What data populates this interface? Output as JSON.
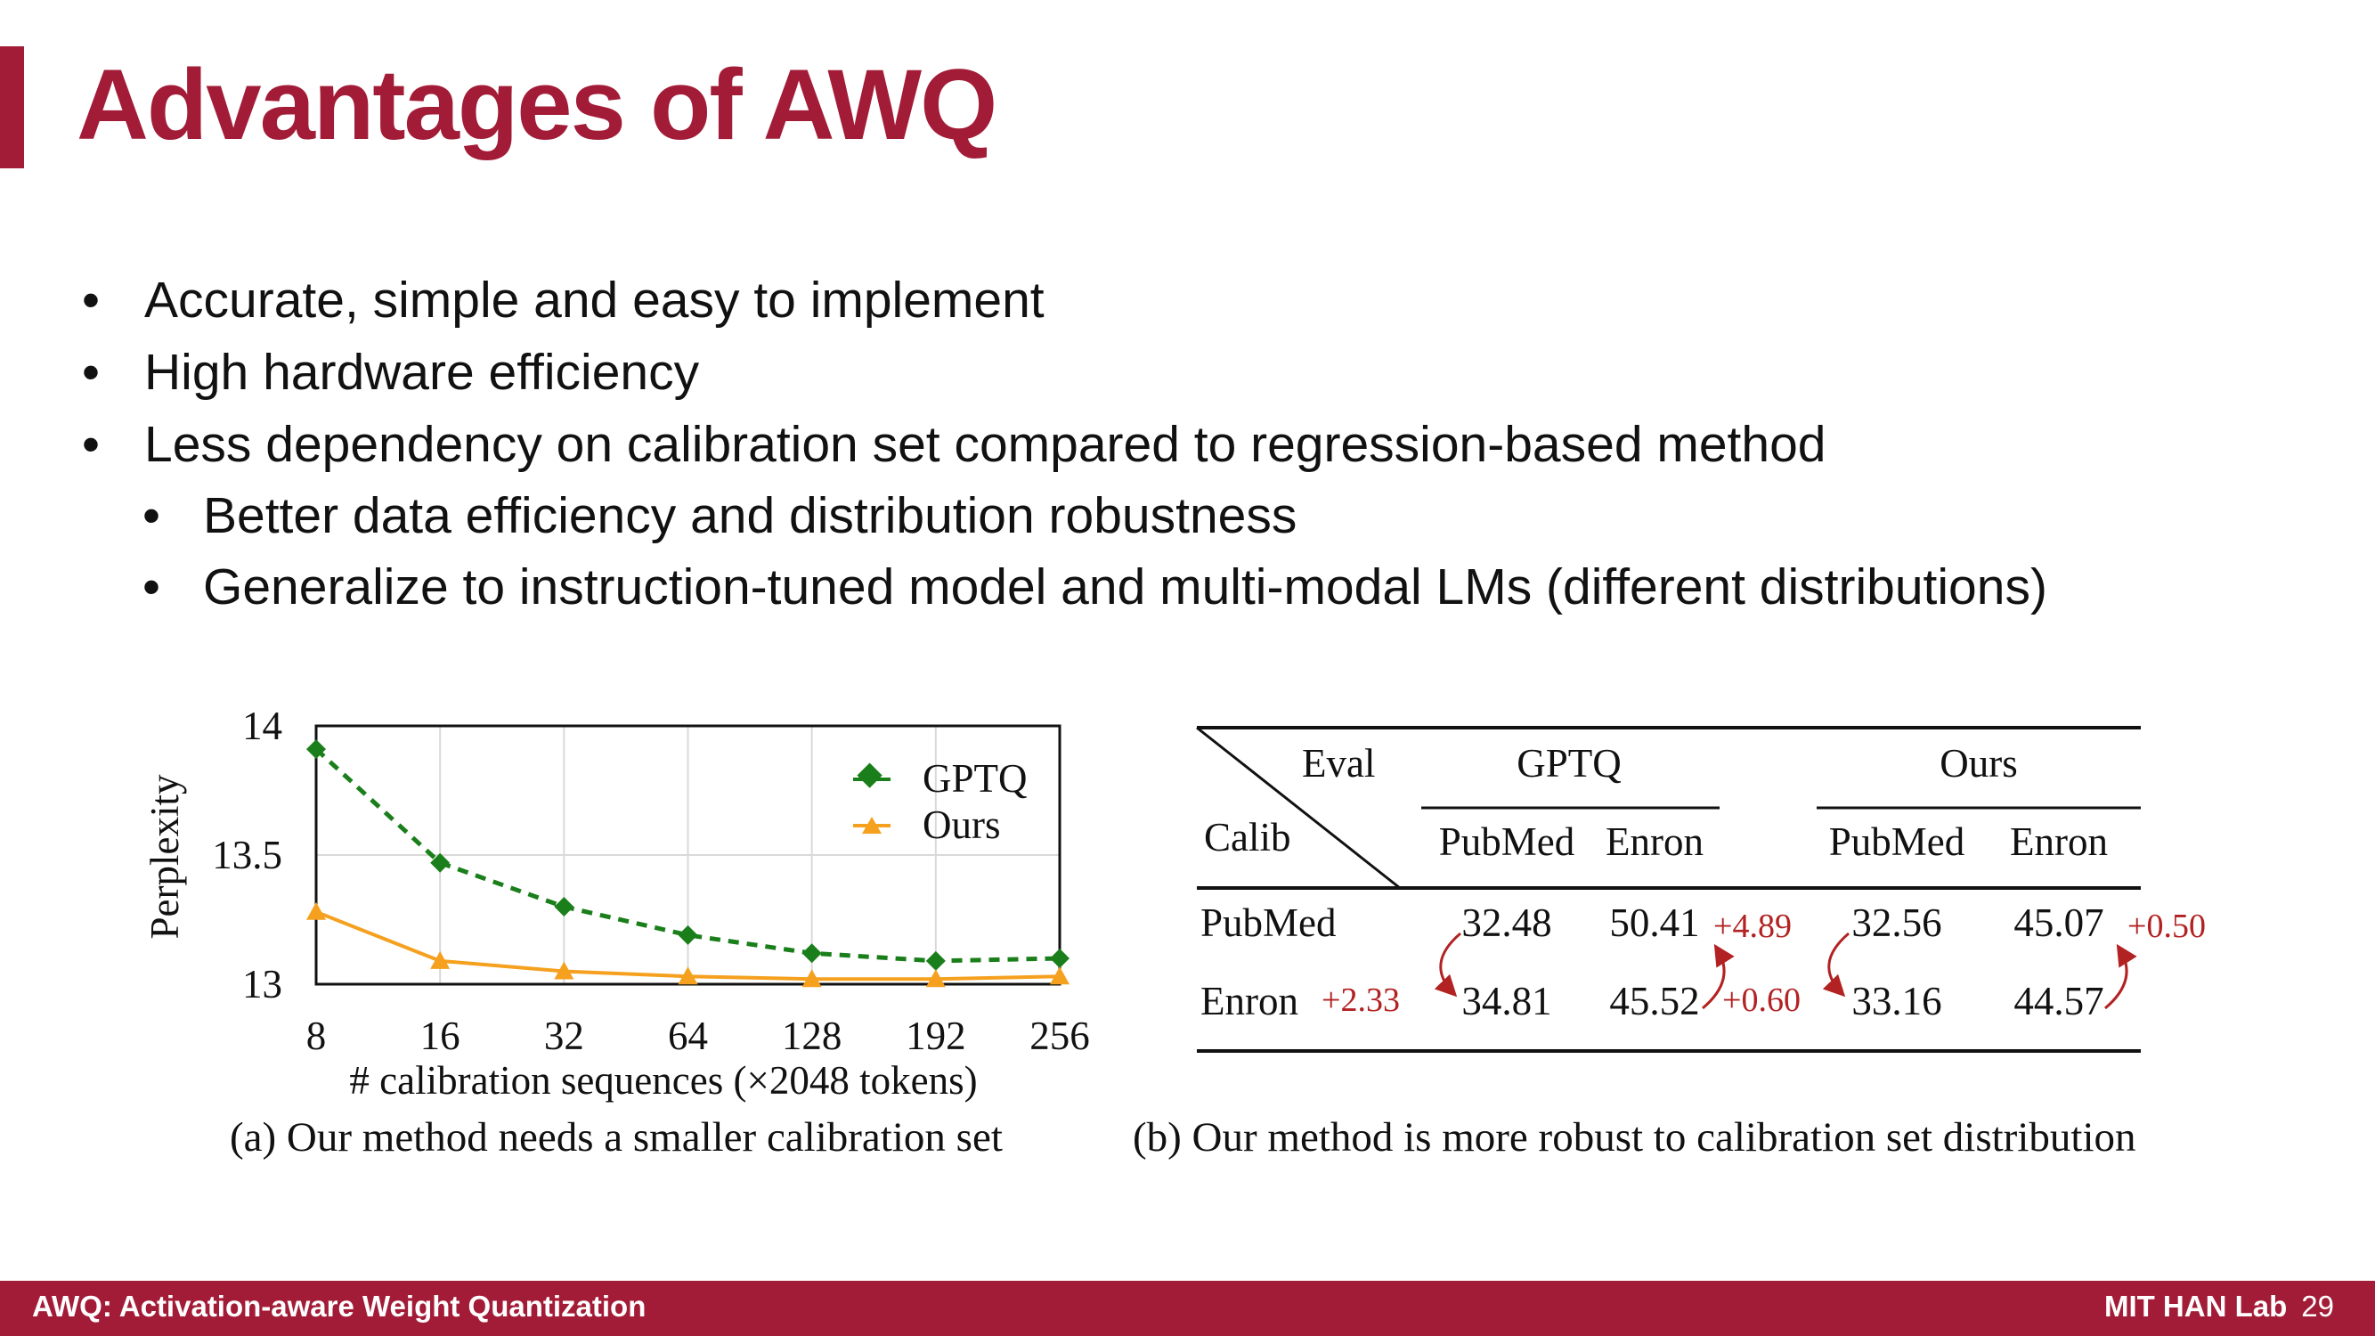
{
  "slide": {
    "title": "Advantages of AWQ",
    "bullets": [
      "Accurate, simple and easy to implement",
      "High hardware efficiency",
      "Less dependency on calibration set compared to regression-based method"
    ],
    "sub_bullets": [
      "Better data efficiency and distribution robustness",
      "Generalize to instruction-tuned model and multi-modal LMs (different distributions)"
    ],
    "bullet_glyph": "•"
  },
  "chart_data": [
    {
      "type": "line",
      "title": "",
      "xlabel": "# calibration sequences (×2048 tokens)",
      "ylabel": "Perplexity",
      "categories": [
        "8",
        "16",
        "32",
        "64",
        "128",
        "192",
        "256"
      ],
      "yticks": [
        "14",
        "13.5",
        "13"
      ],
      "ylim": [
        13,
        14
      ],
      "grid": true,
      "legend": "top-right",
      "series": [
        {
          "name": "GPTQ",
          "values": [
            13.91,
            13.47,
            13.3,
            13.19,
            13.12,
            13.09,
            13.1
          ],
          "color": "#1a7f1a",
          "marker": "diamond",
          "style": "dashed"
        },
        {
          "name": "Ours",
          "values": [
            13.28,
            13.09,
            13.05,
            13.03,
            13.02,
            13.02,
            13.03
          ],
          "color": "#f5a01e",
          "marker": "triangle",
          "style": "solid"
        }
      ],
      "caption": "(a) Our method needs a smaller calibration set"
    },
    {
      "type": "table",
      "corner_eval": "Eval",
      "corner_calib": "Calib",
      "groups": [
        "GPTQ",
        "Ours"
      ],
      "columns": [
        "PubMed",
        "Enron",
        "PubMed",
        "Enron"
      ],
      "rows": [
        {
          "label": "PubMed",
          "values": [
            "32.48",
            "50.41",
            "32.56",
            "45.07"
          ]
        },
        {
          "label": "Enron",
          "values": [
            "34.81",
            "45.52",
            "33.16",
            "44.57"
          ]
        }
      ],
      "deltas": [
        "+2.33",
        "+4.89",
        "+0.60",
        "+0.50"
      ],
      "delta_color": "#b22222",
      "caption": "(b) Our method is more robust to calibration set distribution"
    }
  ],
  "footer": {
    "left": "AWQ: Activation-aware Weight Quantization",
    "lab": "MIT HAN Lab",
    "page": "29"
  }
}
